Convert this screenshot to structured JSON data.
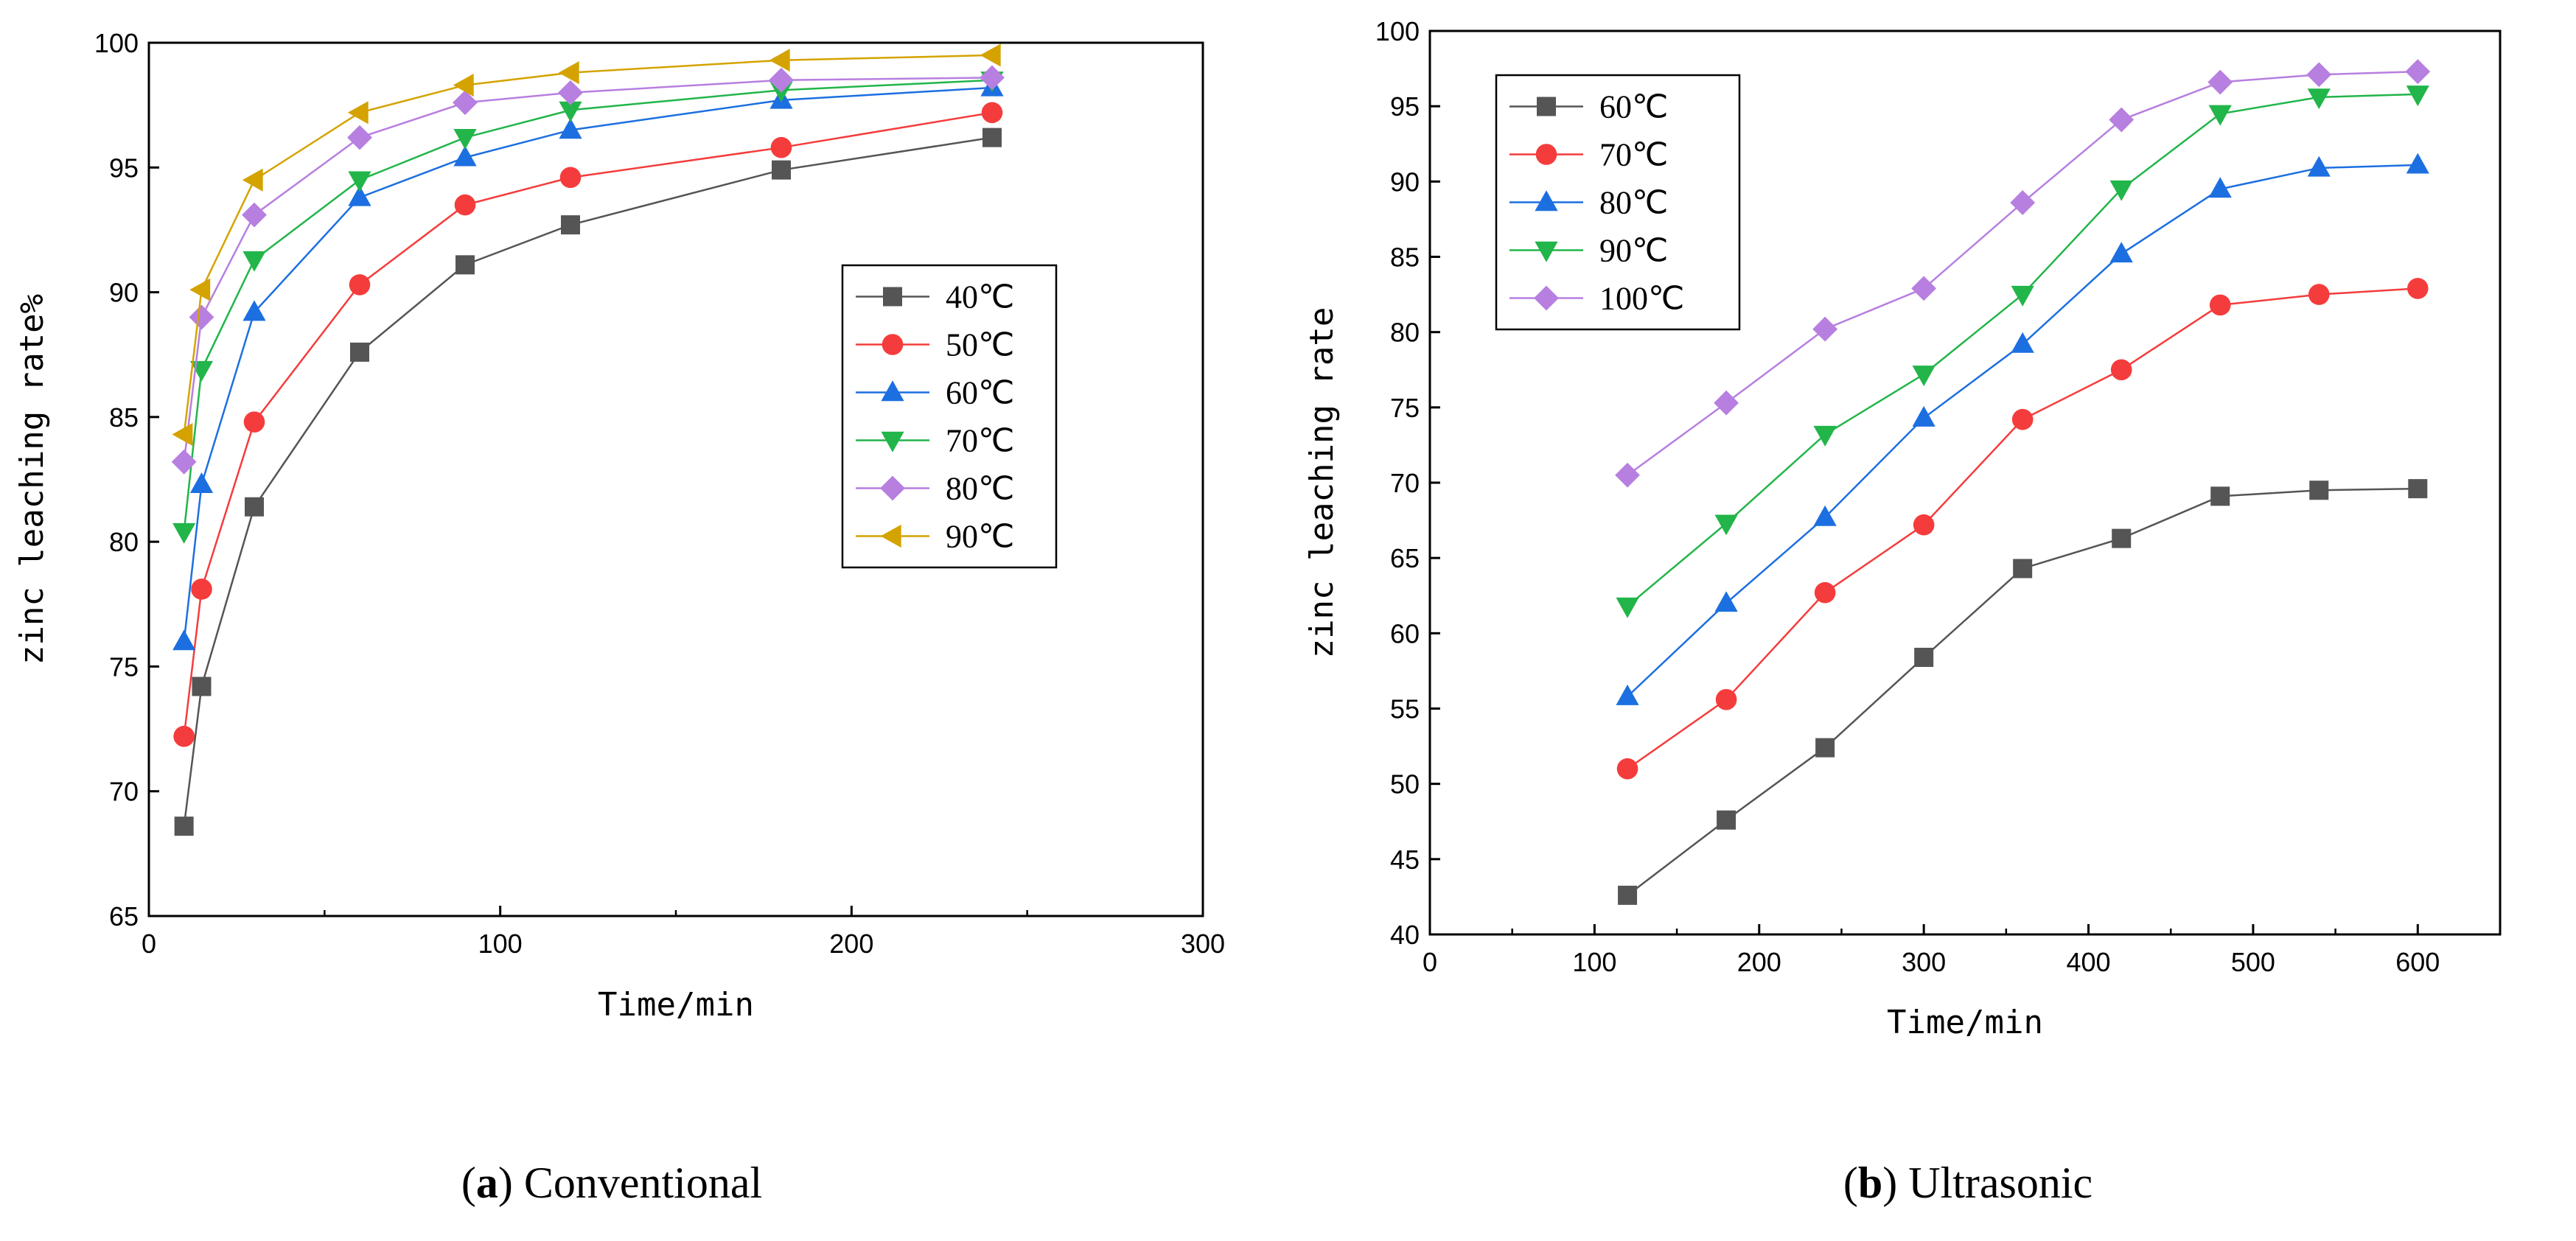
{
  "chart_data": [
    {
      "type": "line",
      "panel_label": "a",
      "caption": "Conventional",
      "title": "",
      "xlabel": "Time/min",
      "ylabel": "zinc leaching rate%",
      "xlim": [
        0,
        300
      ],
      "ylim": [
        65,
        100
      ],
      "xticks": [
        0,
        100,
        200,
        300
      ],
      "yticks": [
        65,
        70,
        75,
        80,
        85,
        90,
        95,
        100
      ],
      "legend_position": "middle-right",
      "x": [
        10,
        15,
        30,
        60,
        90,
        120,
        180,
        240
      ],
      "series": [
        {
          "name": "40℃",
          "marker": "square",
          "color": "#555555",
          "values": [
            68.6,
            74.2,
            81.4,
            87.6,
            91.1,
            92.7,
            94.9,
            96.2
          ]
        },
        {
          "name": "50℃",
          "marker": "circle",
          "color": "#f53c3c",
          "values": [
            72.2,
            78.1,
            84.8,
            90.3,
            93.5,
            94.6,
            95.8,
            97.2
          ]
        },
        {
          "name": "60℃",
          "marker": "triangle-up",
          "color": "#1c6fe0",
          "values": [
            76.0,
            82.3,
            89.2,
            93.8,
            95.4,
            96.5,
            97.7,
            98.2
          ]
        },
        {
          "name": "70℃",
          "marker": "triangle-down",
          "color": "#22b54a",
          "values": [
            80.4,
            86.9,
            91.3,
            94.5,
            96.2,
            97.3,
            98.1,
            98.5
          ]
        },
        {
          "name": "80℃",
          "marker": "diamond",
          "color": "#b77fe0",
          "values": [
            83.2,
            89.0,
            93.1,
            96.2,
            97.6,
            98.0,
            98.5,
            98.6
          ]
        },
        {
          "name": "90℃",
          "marker": "triangle-left",
          "color": "#d4a300",
          "values": [
            84.3,
            90.1,
            94.5,
            97.2,
            98.3,
            98.8,
            99.3,
            99.5
          ]
        }
      ]
    },
    {
      "type": "line",
      "panel_label": "b",
      "caption": "Ultrasonic",
      "title": "",
      "xlabel": "Time/min",
      "ylabel": "zinc leaching rate",
      "xlim": [
        0,
        650
      ],
      "ylim": [
        40,
        100
      ],
      "xticks": [
        0,
        100,
        200,
        300,
        400,
        500,
        600
      ],
      "yticks": [
        40,
        45,
        50,
        55,
        60,
        65,
        70,
        75,
        80,
        85,
        90,
        95,
        100
      ],
      "legend_position": "top-left",
      "x": [
        120,
        180,
        240,
        300,
        360,
        420,
        480,
        540,
        600
      ],
      "series": [
        {
          "name": "60℃",
          "marker": "square",
          "color": "#555555",
          "values": [
            42.6,
            47.6,
            52.4,
            58.4,
            64.3,
            66.3,
            69.1,
            69.5,
            69.6
          ]
        },
        {
          "name": "70℃",
          "marker": "circle",
          "color": "#f53c3c",
          "values": [
            51.0,
            55.6,
            62.7,
            67.2,
            74.2,
            77.5,
            81.8,
            82.5,
            82.9
          ]
        },
        {
          "name": "80℃",
          "marker": "triangle-up",
          "color": "#1c6fe0",
          "values": [
            55.8,
            62.0,
            67.7,
            74.3,
            79.2,
            85.2,
            89.5,
            90.9,
            91.1
          ]
        },
        {
          "name": "90℃",
          "marker": "triangle-down",
          "color": "#22b54a",
          "values": [
            61.8,
            67.3,
            73.2,
            77.2,
            82.5,
            89.5,
            94.5,
            95.6,
            95.8
          ]
        },
        {
          "name": "100℃",
          "marker": "diamond",
          "color": "#b77fe0",
          "values": [
            70.5,
            75.3,
            80.2,
            82.9,
            88.6,
            94.1,
            96.6,
            97.1,
            97.3
          ]
        }
      ]
    }
  ]
}
